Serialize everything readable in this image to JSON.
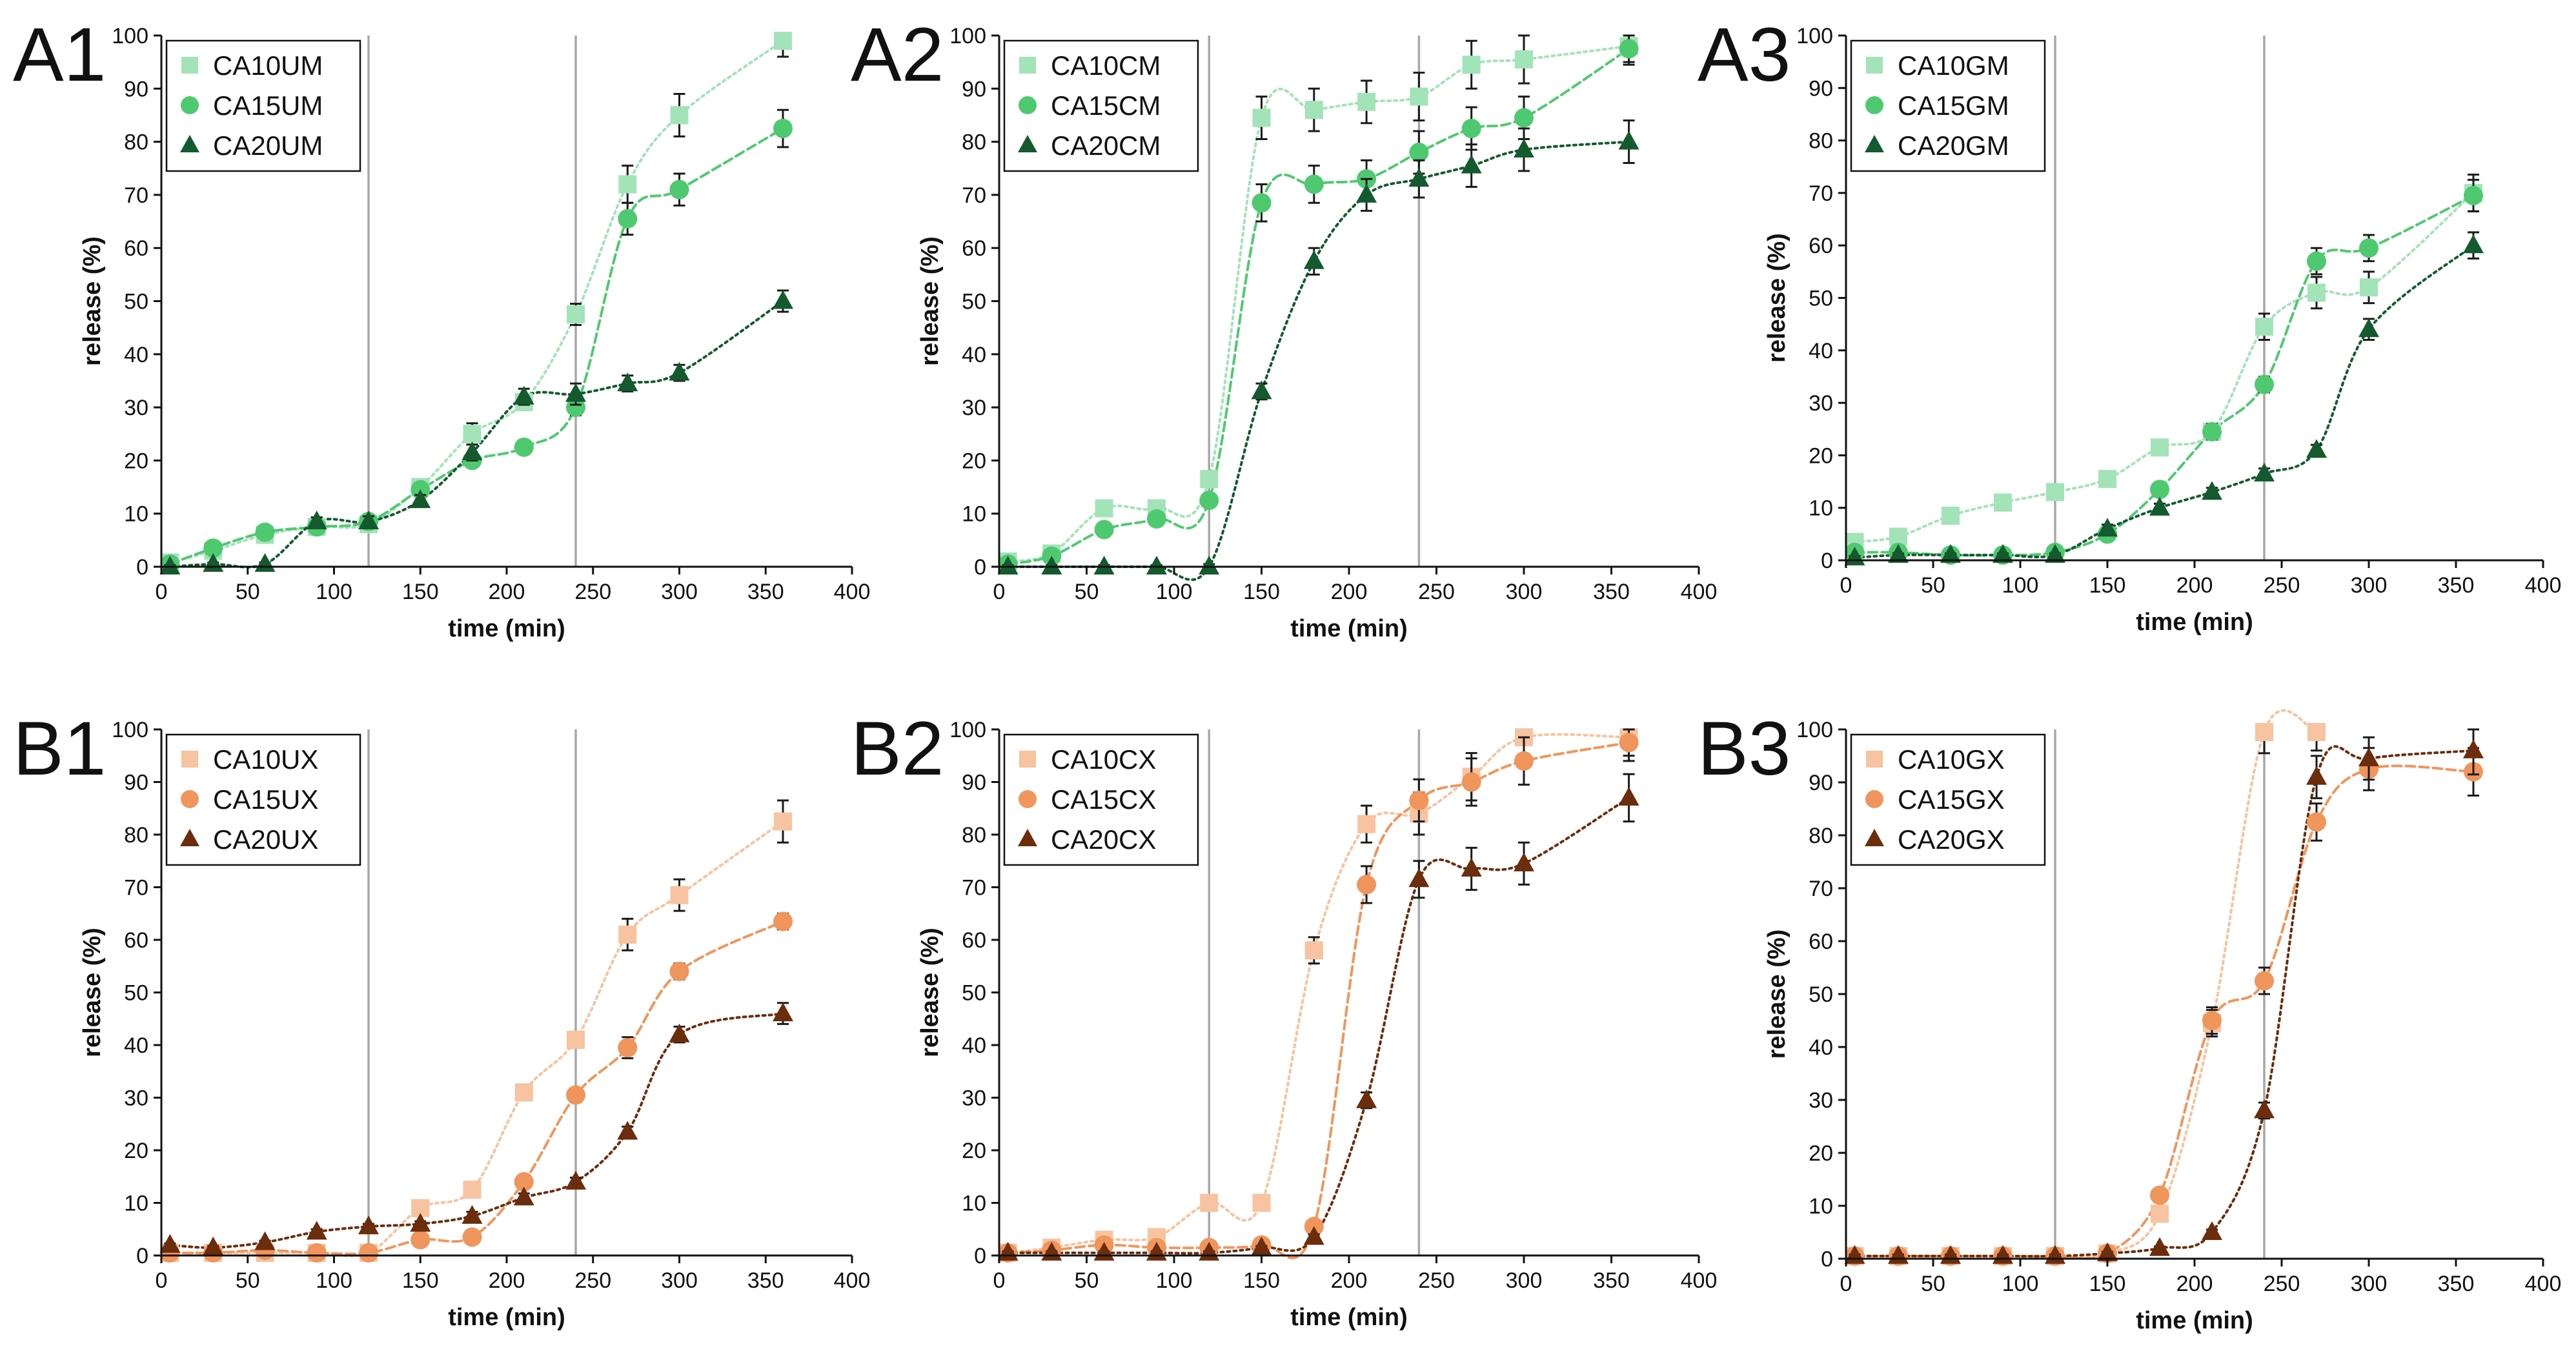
{
  "chart_data": [
    {
      "panel": "A1",
      "type": "scatter",
      "xlabel": "time (min)",
      "ylabel": "release (%)",
      "xlim": [
        0,
        400
      ],
      "ylim": [
        0,
        100
      ],
      "xticks": [
        0,
        50,
        100,
        150,
        200,
        250,
        300,
        350,
        400
      ],
      "yticks": [
        0,
        10,
        20,
        30,
        40,
        50,
        60,
        70,
        80,
        90,
        100
      ],
      "phase_lines": [
        120,
        240
      ],
      "legend_position": "top-left",
      "series": [
        {
          "name": "CA10UM",
          "marker": "square",
          "color": "#a3e3b8",
          "x": [
            5,
            30,
            60,
            90,
            120,
            150,
            180,
            210,
            240,
            270,
            300,
            360
          ],
          "y": [
            0.8,
            3,
            6,
            7.5,
            8,
            15,
            25,
            31,
            47.5,
            72,
            85,
            99
          ],
          "err": [
            0.5,
            0.5,
            0.5,
            0.8,
            1,
            1.5,
            2,
            1.5,
            2,
            3.5,
            4,
            3
          ]
        },
        {
          "name": "CA15UM",
          "marker": "circle",
          "color": "#4fc970",
          "x": [
            5,
            30,
            60,
            90,
            120,
            150,
            180,
            210,
            240,
            270,
            300,
            360
          ],
          "y": [
            0.5,
            3.5,
            6.5,
            7.5,
            8.5,
            14.5,
            20,
            22.5,
            30,
            65.5,
            71,
            82.5
          ],
          "err": [
            0.5,
            0.5,
            0.5,
            0.8,
            1,
            1,
            1,
            1,
            1.5,
            3,
            3,
            3.5
          ]
        },
        {
          "name": "CA20UM",
          "marker": "triangle",
          "color": "#145a2e",
          "x": [
            5,
            30,
            60,
            90,
            120,
            150,
            180,
            210,
            240,
            270,
            300,
            360
          ],
          "y": [
            0,
            0.5,
            0.5,
            8.5,
            8.5,
            12.5,
            21.5,
            32,
            32.5,
            34.5,
            36.5,
            50
          ],
          "err": [
            0.3,
            0.3,
            0.3,
            0.8,
            1,
            1,
            1.5,
            1.5,
            2,
            1.5,
            1.5,
            2
          ]
        }
      ]
    },
    {
      "panel": "A2",
      "type": "scatter",
      "xlabel": "time (min)",
      "ylabel": "release (%)",
      "xlim": [
        0,
        400
      ],
      "ylim": [
        0,
        100
      ],
      "xticks": [
        0,
        50,
        100,
        150,
        200,
        250,
        300,
        350,
        400
      ],
      "yticks": [
        0,
        10,
        20,
        30,
        40,
        50,
        60,
        70,
        80,
        90,
        100
      ],
      "phase_lines": [
        120,
        240
      ],
      "legend_position": "top-left",
      "series": [
        {
          "name": "CA10CM",
          "marker": "square",
          "color": "#a3e3b8",
          "x": [
            5,
            30,
            60,
            90,
            120,
            150,
            180,
            210,
            240,
            270,
            300,
            360
          ],
          "y": [
            1,
            2.5,
            11,
            11,
            16.5,
            84.5,
            86,
            87.5,
            88.5,
            94.5,
            95.5,
            98
          ],
          "err": [
            0.5,
            0.5,
            1,
            1,
            1.5,
            4,
            4,
            4,
            4.5,
            4.5,
            4.5,
            3
          ]
        },
        {
          "name": "CA15CM",
          "marker": "circle",
          "color": "#4fc970",
          "x": [
            5,
            30,
            60,
            90,
            120,
            150,
            180,
            210,
            240,
            270,
            300,
            360
          ],
          "y": [
            0.5,
            2,
            7,
            9,
            12.5,
            68.5,
            72,
            73,
            78,
            82.5,
            84.5,
            97.5
          ],
          "err": [
            0.5,
            0.5,
            0.8,
            0.8,
            1,
            3.5,
            3.5,
            3.5,
            4,
            4,
            4,
            3
          ]
        },
        {
          "name": "CA20CM",
          "marker": "triangle",
          "color": "#145a2e",
          "x": [
            5,
            30,
            60,
            90,
            120,
            150,
            180,
            210,
            240,
            270,
            300,
            360
          ],
          "y": [
            0,
            0,
            0,
            0,
            0,
            33,
            57.5,
            70,
            73,
            75.5,
            78.5,
            80
          ],
          "err": [
            0.3,
            0.3,
            0.3,
            0.3,
            0.5,
            1.5,
            2.5,
            3,
            3.5,
            4,
            4,
            4
          ]
        }
      ]
    },
    {
      "panel": "A3",
      "type": "scatter",
      "xlabel": "time (min)",
      "ylabel": "release (%)",
      "xlim": [
        0,
        400
      ],
      "ylim": [
        0,
        100
      ],
      "xticks": [
        0,
        50,
        100,
        150,
        200,
        250,
        300,
        350,
        400
      ],
      "yticks": [
        0,
        10,
        20,
        30,
        40,
        50,
        60,
        70,
        80,
        90,
        100
      ],
      "phase_lines": [
        120,
        240
      ],
      "legend_position": "top-left",
      "series": [
        {
          "name": "CA10GM",
          "marker": "square",
          "color": "#a3e3b8",
          "x": [
            5,
            30,
            60,
            90,
            120,
            150,
            180,
            210,
            240,
            270,
            300,
            360
          ],
          "y": [
            3.5,
            4.5,
            8.5,
            11,
            13,
            15.5,
            21.5,
            24.5,
            44.5,
            51,
            52,
            70
          ],
          "err": [
            0.8,
            0.8,
            0.8,
            0.8,
            1,
            1,
            1.5,
            1.5,
            2.5,
            3,
            3,
            3.5
          ]
        },
        {
          "name": "CA15GM",
          "marker": "circle",
          "color": "#4fc970",
          "x": [
            5,
            30,
            60,
            90,
            120,
            150,
            180,
            210,
            240,
            270,
            300,
            360
          ],
          "y": [
            1.5,
            1.5,
            1,
            1,
            1.5,
            5,
            13.5,
            24.5,
            33.5,
            57,
            59.5,
            69.5
          ],
          "err": [
            0.5,
            0.5,
            0.5,
            0.5,
            0.5,
            1,
            1,
            1.5,
            1.5,
            2.5,
            2.5,
            3
          ]
        },
        {
          "name": "CA20GM",
          "marker": "triangle",
          "color": "#145a2e",
          "x": [
            5,
            30,
            60,
            90,
            120,
            150,
            180,
            210,
            240,
            270,
            300,
            360
          ],
          "y": [
            0.5,
            1,
            1,
            1,
            1,
            6,
            10,
            13,
            16.5,
            21,
            44,
            60
          ],
          "err": [
            0.3,
            0.3,
            0.3,
            0.3,
            0.3,
            0.8,
            0.8,
            0.8,
            1,
            1,
            2,
            2.5
          ]
        }
      ]
    },
    {
      "panel": "B1",
      "type": "scatter",
      "xlabel": "time (min)",
      "ylabel": "release (%)",
      "xlim": [
        0,
        400
      ],
      "ylim": [
        0,
        100
      ],
      "xticks": [
        0,
        50,
        100,
        150,
        200,
        250,
        300,
        350,
        400
      ],
      "yticks": [
        0,
        10,
        20,
        30,
        40,
        50,
        60,
        70,
        80,
        90,
        100
      ],
      "phase_lines": [
        120,
        240
      ],
      "legend_position": "top-left",
      "series": [
        {
          "name": "CA10UX",
          "marker": "square",
          "color": "#f7c3a0",
          "x": [
            5,
            30,
            60,
            90,
            120,
            150,
            180,
            210,
            240,
            270,
            300,
            360
          ],
          "y": [
            0.5,
            0.5,
            0.5,
            0.5,
            0.5,
            9,
            12.5,
            31,
            41,
            61,
            68.5,
            82.5
          ],
          "err": [
            0.3,
            0.3,
            0.3,
            0.3,
            0.5,
            1,
            1,
            1.5,
            1.5,
            3,
            3,
            4
          ]
        },
        {
          "name": "CA15UX",
          "marker": "circle",
          "color": "#f0955c",
          "x": [
            5,
            30,
            60,
            90,
            120,
            150,
            180,
            210,
            240,
            270,
            300,
            360
          ],
          "y": [
            0.5,
            0.5,
            1,
            0.5,
            0.5,
            3,
            3.5,
            14,
            30.5,
            39.5,
            54,
            63.5
          ],
          "err": [
            0.3,
            0.3,
            0.3,
            0.3,
            0.3,
            0.5,
            0.5,
            1,
            1,
            2,
            1.5,
            1.5
          ]
        },
        {
          "name": "CA20UX",
          "marker": "triangle",
          "color": "#6b2d0c",
          "x": [
            5,
            30,
            60,
            90,
            120,
            150,
            180,
            210,
            240,
            270,
            300,
            360
          ],
          "y": [
            2,
            1.5,
            2.5,
            4.5,
            5.5,
            6,
            7.5,
            11,
            14,
            23.5,
            42,
            46
          ],
          "err": [
            0.3,
            0.3,
            0.3,
            0.5,
            0.5,
            0.5,
            0.8,
            0.8,
            0.8,
            1,
            1.5,
            2
          ]
        }
      ]
    },
    {
      "panel": "B2",
      "type": "scatter",
      "xlabel": "time (min)",
      "ylabel": "release (%)",
      "xlim": [
        0,
        400
      ],
      "ylim": [
        0,
        100
      ],
      "xticks": [
        0,
        50,
        100,
        150,
        200,
        250,
        300,
        350,
        400
      ],
      "yticks": [
        0,
        10,
        20,
        30,
        40,
        50,
        60,
        70,
        80,
        90,
        100
      ],
      "phase_lines": [
        120,
        240
      ],
      "legend_position": "top-left",
      "series": [
        {
          "name": "CA10CX",
          "marker": "square",
          "color": "#f7c3a0",
          "x": [
            5,
            30,
            60,
            90,
            120,
            150,
            180,
            210,
            240,
            270,
            300,
            360
          ],
          "y": [
            0.5,
            1.5,
            3,
            3.5,
            10,
            10,
            58,
            82,
            84,
            91,
            98.5,
            98.5
          ],
          "err": [
            0.3,
            0.3,
            0.5,
            0.5,
            0.8,
            0.8,
            2.5,
            3.5,
            4,
            4.5,
            4.5,
            3.5
          ]
        },
        {
          "name": "CA15CX",
          "marker": "circle",
          "color": "#f0955c",
          "x": [
            5,
            30,
            60,
            90,
            120,
            150,
            180,
            210,
            240,
            270,
            300,
            360
          ],
          "y": [
            0.5,
            1,
            2,
            1.5,
            1.5,
            2,
            5.5,
            70.5,
            86.5,
            90,
            94,
            97.5
          ],
          "err": [
            0.3,
            0.3,
            0.3,
            0.3,
            0.3,
            0.5,
            0.5,
            3.5,
            4,
            4.5,
            4.5,
            3.5
          ]
        },
        {
          "name": "CA20CX",
          "marker": "triangle",
          "color": "#6b2d0c",
          "x": [
            5,
            30,
            60,
            90,
            120,
            150,
            180,
            210,
            240,
            270,
            300,
            360
          ],
          "y": [
            0.5,
            0.5,
            0.5,
            0.5,
            0.5,
            1.5,
            3.5,
            29.5,
            71.5,
            73.5,
            74.5,
            87
          ],
          "err": [
            0.3,
            0.3,
            0.3,
            0.3,
            0.3,
            0.3,
            0.5,
            1.5,
            3.5,
            4,
            4,
            4.5
          ]
        }
      ]
    },
    {
      "panel": "B3",
      "type": "scatter",
      "xlabel": "time (min)",
      "ylabel": "release (%)",
      "xlim": [
        0,
        400
      ],
      "ylim": [
        0,
        100
      ],
      "xticks": [
        0,
        50,
        100,
        150,
        200,
        250,
        300,
        350,
        400
      ],
      "yticks": [
        0,
        10,
        20,
        30,
        40,
        50,
        60,
        70,
        80,
        90,
        100
      ],
      "phase_lines": [
        120,
        240
      ],
      "legend_position": "top-left",
      "series": [
        {
          "name": "CA10GX",
          "marker": "square",
          "color": "#f7c3a0",
          "x": [
            5,
            30,
            60,
            90,
            120,
            150,
            180,
            210,
            240,
            270
          ],
          "y": [
            0.5,
            0.5,
            0.5,
            0.5,
            0.5,
            1,
            8.5,
            44.5,
            99.5,
            99.5
          ],
          "err": [
            0.3,
            0.3,
            0.3,
            0.3,
            0.3,
            0.5,
            1,
            2.5,
            4,
            3.5
          ]
        },
        {
          "name": "CA15GX",
          "marker": "circle",
          "color": "#f0955c",
          "x": [
            5,
            30,
            60,
            90,
            120,
            150,
            180,
            210,
            240,
            270,
            300,
            360
          ],
          "y": [
            0.5,
            0.5,
            0.5,
            0.5,
            0.5,
            1,
            12,
            45,
            52.5,
            82.5,
            92.5,
            92
          ],
          "err": [
            0.3,
            0.3,
            0.3,
            0.3,
            0.3,
            0.5,
            1,
            2.5,
            2.5,
            3.5,
            4,
            4.5
          ]
        },
        {
          "name": "CA20GX",
          "marker": "triangle",
          "color": "#6b2d0c",
          "x": [
            5,
            30,
            60,
            90,
            120,
            150,
            180,
            210,
            240,
            270,
            300,
            360
          ],
          "y": [
            0.5,
            0.5,
            0.5,
            0.5,
            0.5,
            1,
            2,
            5,
            28,
            91,
            94.5,
            96
          ],
          "err": [
            0.3,
            0.3,
            0.3,
            0.3,
            0.3,
            0.3,
            0.3,
            0.5,
            1.5,
            4,
            4,
            4.5
          ]
        }
      ]
    }
  ]
}
